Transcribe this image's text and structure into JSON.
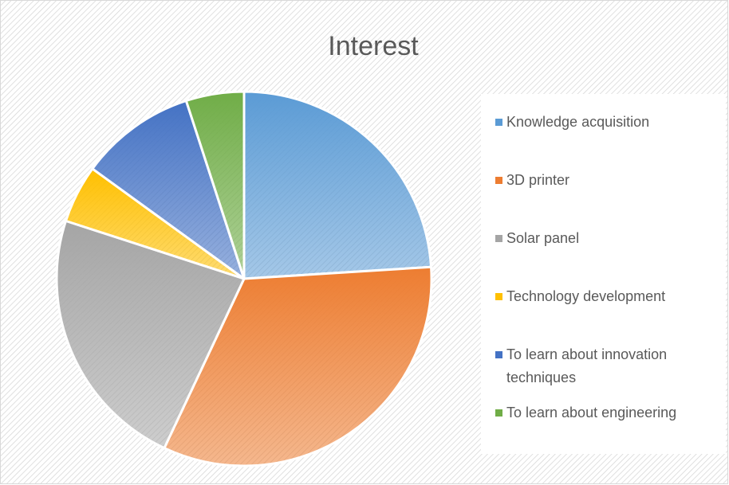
{
  "chart_data": {
    "type": "pie",
    "title": "Interest",
    "categories": [
      "Knowledge acquisition",
      "3D printer",
      "Solar panel",
      "Technology development",
      "To learn about innovation techniques",
      "To learn about engineering"
    ],
    "values": [
      24,
      33,
      23,
      5,
      10,
      5
    ],
    "colors": [
      "#5b9bd5",
      "#ed7d31",
      "#a5a5a5",
      "#ffc000",
      "#4472c4",
      "#70ad47"
    ],
    "legend": "right"
  }
}
